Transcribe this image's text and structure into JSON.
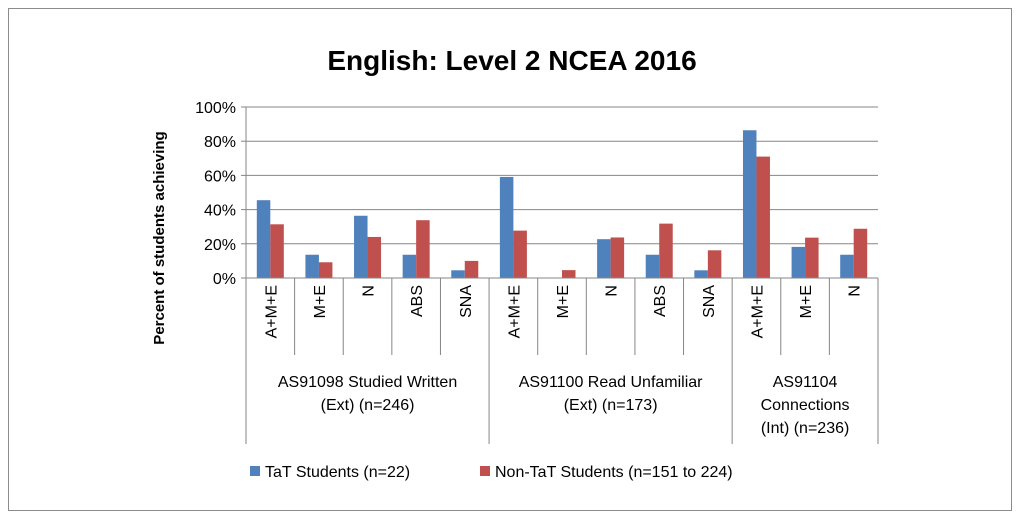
{
  "chart_data": {
    "type": "bar",
    "title": "English: Level 2 NCEA 2016",
    "ylabel": "Percent of students achieving",
    "xlabel": "",
    "ylim": [
      0,
      100
    ],
    "yticks": [
      "0%",
      "20%",
      "40%",
      "60%",
      "80%",
      "100%"
    ],
    "categories": [
      "A+M+E",
      "M+E",
      "N",
      "ABS",
      "SNA",
      "A+M+E",
      "M+E",
      "N",
      "ABS",
      "SNA",
      "A+M+E",
      "M+E",
      "N"
    ],
    "groups": [
      {
        "lines": [
          "AS91098 Studied Written",
          "(Ext) (n=246)"
        ],
        "count": 5
      },
      {
        "lines": [
          "AS91100 Read Unfamiliar",
          "(Ext)  (n=173)"
        ],
        "count": 5
      },
      {
        "lines": [
          "AS91104",
          "Connections",
          "(Int)  (n=236)"
        ],
        "count": 3
      }
    ],
    "series": [
      {
        "name": "TaT Students (n=22)",
        "color": "#4f81bd",
        "values": [
          45.5,
          13.6,
          36.4,
          13.6,
          4.5,
          59.1,
          0,
          22.7,
          13.6,
          4.5,
          86.4,
          18.2,
          13.6
        ]
      },
      {
        "name": "Non-TaT Students (n=151 to 224)",
        "color": "#c0504d",
        "values": [
          31.4,
          9.2,
          24.0,
          33.8,
          10.0,
          27.7,
          4.6,
          23.7,
          31.8,
          16.2,
          71.0,
          23.6,
          28.8
        ]
      }
    ],
    "grid": true,
    "legend_position": "bottom"
  }
}
